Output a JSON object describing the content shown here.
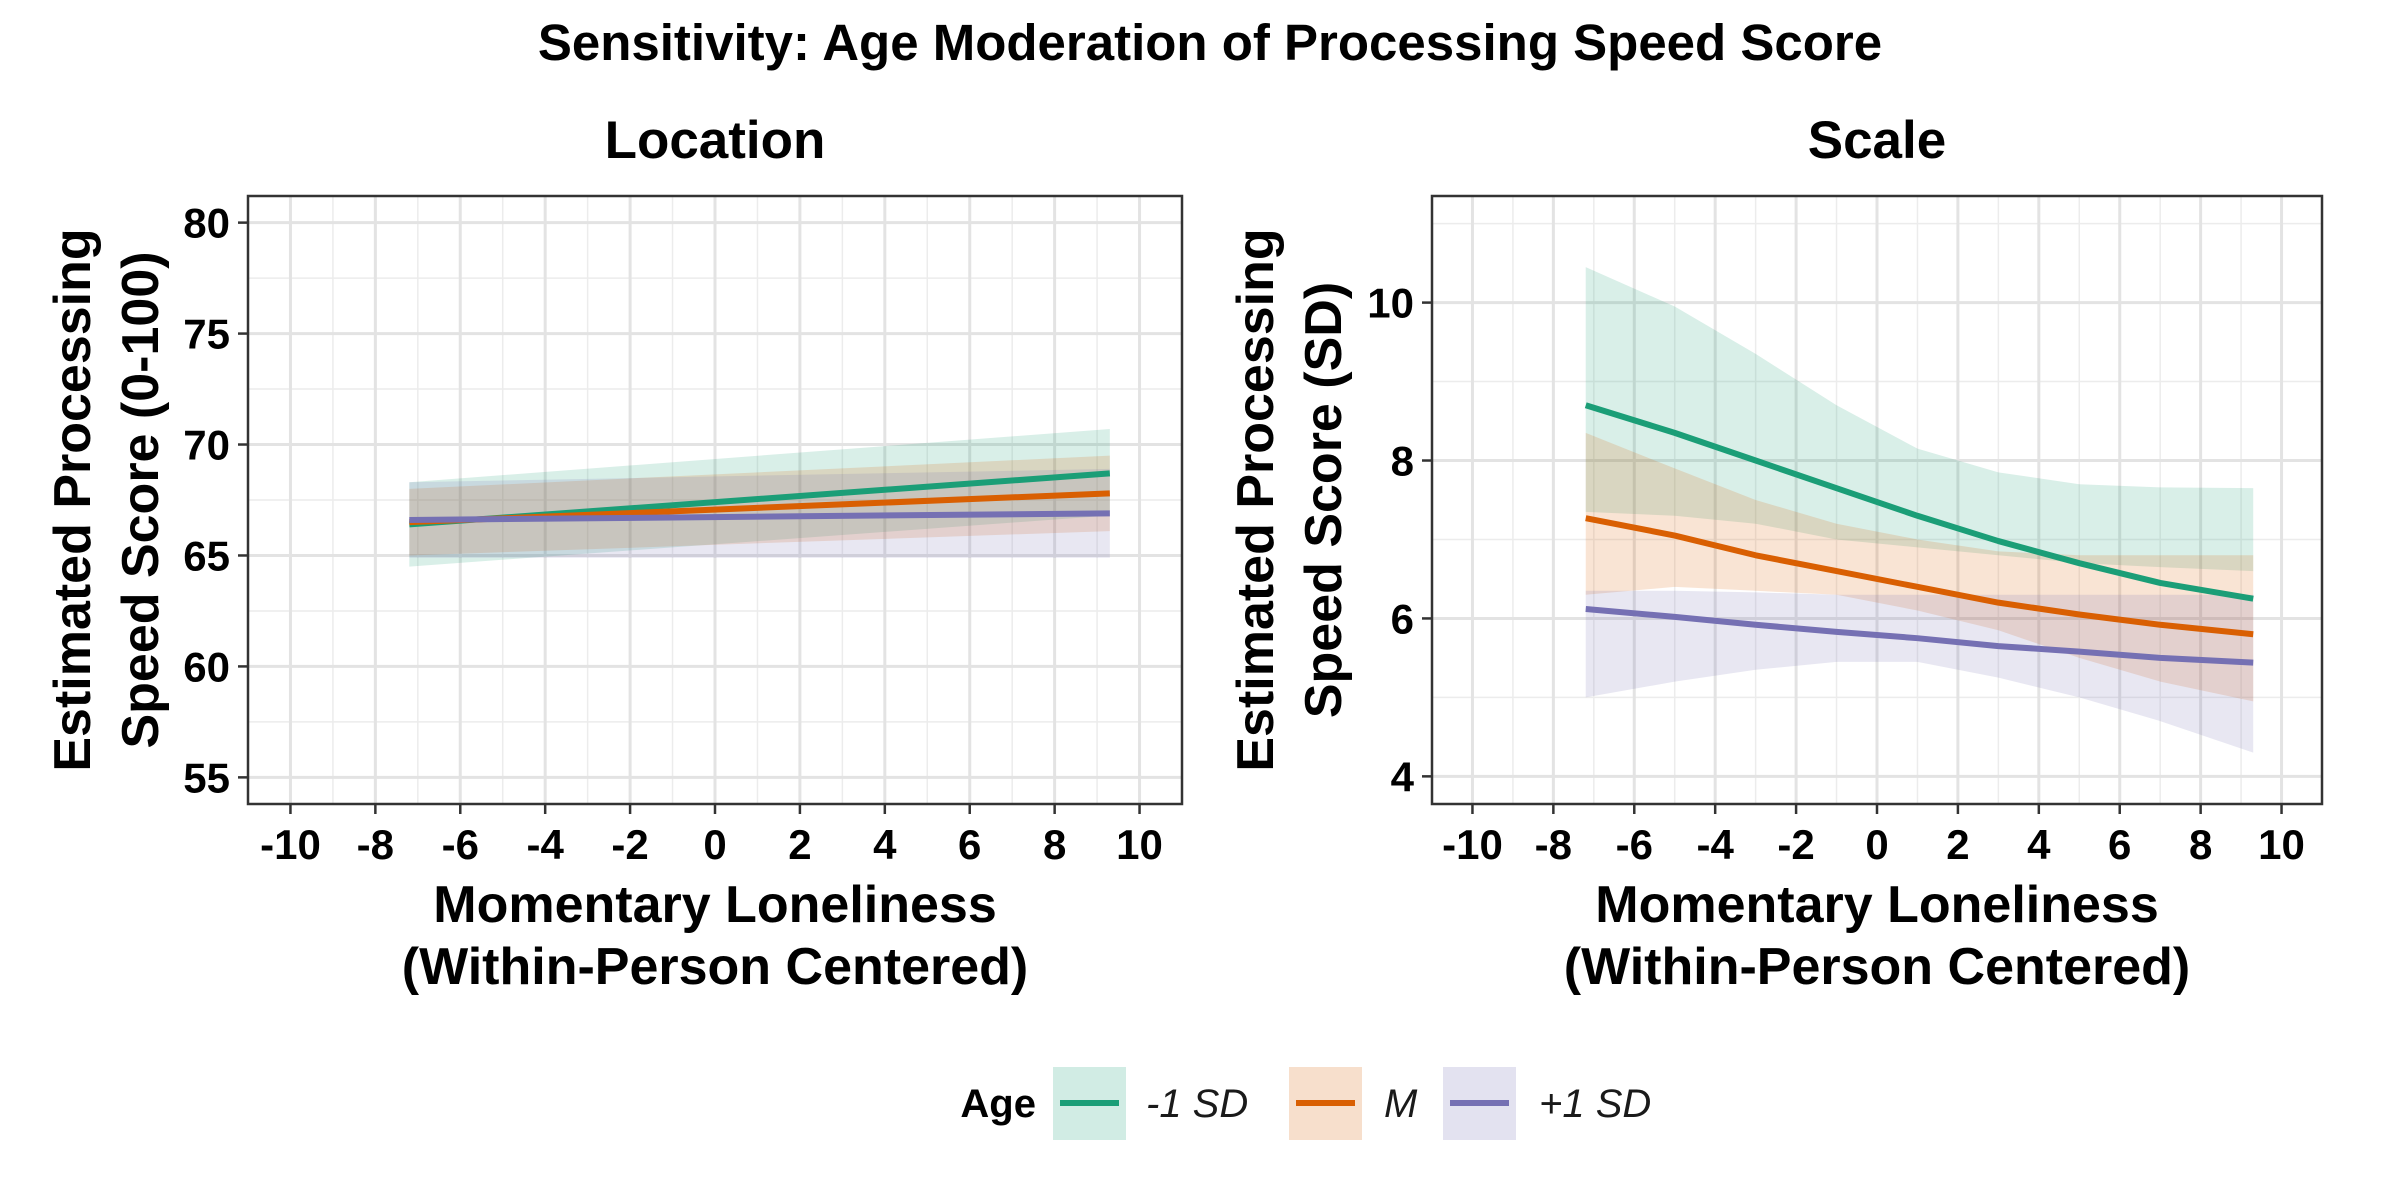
{
  "title": "Sensitivity: Age Moderation of Processing Speed Score",
  "legend": {
    "title": "Age",
    "items": [
      {
        "label": "-1 SD",
        "color": "#1b9e77"
      },
      {
        "label": "M",
        "color": "#d95f02"
      },
      {
        "label": "+1 SD",
        "color": "#7570b3"
      }
    ]
  },
  "chart_data": [
    {
      "type": "line",
      "title": "Location",
      "xlabel": [
        "Momentary Loneliness",
        "(Within-Person Centered)"
      ],
      "ylabel": [
        "Estimated Processing",
        "Speed Score (0-100)"
      ],
      "xlim": [
        -11,
        11
      ],
      "ylim": [
        53.8,
        81.2
      ],
      "xticks": [
        -10,
        -8,
        -6,
        -4,
        -2,
        0,
        2,
        4,
        6,
        8,
        10
      ],
      "yticks": [
        55,
        60,
        65,
        70,
        75,
        80
      ],
      "grid": true,
      "x": [
        -7.2,
        9.3
      ],
      "series": [
        {
          "name": "-1 SD",
          "color": "#1b9e77",
          "values": [
            66.4,
            68.7
          ],
          "lower": [
            64.5,
            66.8
          ],
          "upper": [
            68.3,
            70.7
          ]
        },
        {
          "name": "M",
          "color": "#d95f02",
          "values": [
            66.5,
            67.8
          ],
          "lower": [
            65.0,
            66.1
          ],
          "upper": [
            68.0,
            69.5
          ]
        },
        {
          "name": "+1 SD",
          "color": "#7570b3",
          "values": [
            66.6,
            66.9
          ],
          "lower": [
            64.9,
            64.9
          ],
          "upper": [
            68.3,
            68.9
          ]
        }
      ]
    },
    {
      "type": "line",
      "title": "Scale",
      "xlabel": [
        "Momentary Loneliness",
        "(Within-Person Centered)"
      ],
      "ylabel": [
        "Estimated Processing",
        "Speed Score (SD)"
      ],
      "xlim": [
        -11,
        11
      ],
      "ylim": [
        3.65,
        11.35
      ],
      "xticks": [
        -10,
        -8,
        -6,
        -4,
        -2,
        0,
        2,
        4,
        6,
        8,
        10
      ],
      "yticks": [
        4,
        6,
        8,
        10
      ],
      "grid": true,
      "x": [
        -7.2,
        -5,
        -3,
        -1,
        1,
        3,
        5,
        7,
        9.3
      ],
      "series": [
        {
          "name": "-1 SD",
          "color": "#1b9e77",
          "values": [
            8.7,
            8.35,
            8.0,
            7.65,
            7.3,
            6.98,
            6.7,
            6.45,
            6.25
          ],
          "lower": [
            7.35,
            7.3,
            7.2,
            7.0,
            6.9,
            6.8,
            6.7,
            6.65,
            6.6
          ],
          "upper": [
            10.45,
            9.95,
            9.35,
            8.7,
            8.15,
            7.85,
            7.7,
            7.66,
            7.65
          ]
        },
        {
          "name": "M",
          "color": "#d95f02",
          "values": [
            7.27,
            7.05,
            6.8,
            6.6,
            6.4,
            6.2,
            6.05,
            5.92,
            5.8
          ],
          "lower": [
            6.3,
            6.4,
            6.35,
            6.3,
            6.1,
            5.85,
            5.5,
            5.2,
            4.95
          ],
          "upper": [
            8.35,
            7.9,
            7.5,
            7.2,
            7.0,
            6.85,
            6.8,
            6.8,
            6.8
          ]
        },
        {
          "name": "+1 SD",
          "color": "#7570b3",
          "values": [
            6.12,
            6.02,
            5.92,
            5.83,
            5.75,
            5.65,
            5.58,
            5.5,
            5.44
          ],
          "lower": [
            5.0,
            5.2,
            5.35,
            5.45,
            5.45,
            5.25,
            5.0,
            4.7,
            4.3
          ],
          "upper": [
            6.35,
            6.35,
            6.33,
            6.3,
            6.3,
            6.3,
            6.3,
            6.3,
            6.3
          ]
        }
      ]
    }
  ]
}
